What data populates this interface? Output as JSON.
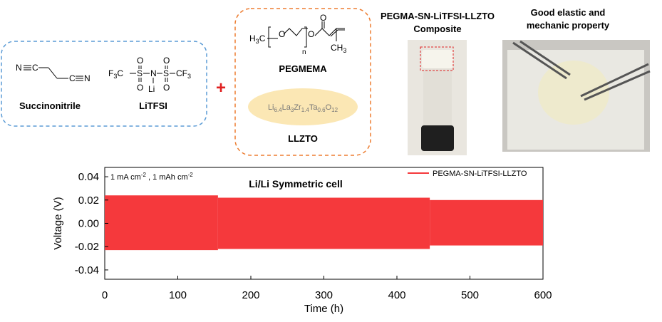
{
  "diagram": {
    "succinonitrile": {
      "atoms": [
        "N",
        "C",
        "C",
        "N"
      ],
      "label": "Succinonitrile"
    },
    "litfsi": {
      "left": [
        "F",
        "3",
        "C"
      ],
      "s": "S",
      "n": "N",
      "right": [
        "CF",
        "3"
      ],
      "o": "O",
      "li": "Li",
      "label": "LiTFSI"
    },
    "plus": "+",
    "pegmema": {
      "h3c": [
        "H",
        "3",
        "C"
      ],
      "o": "O",
      "n": "n",
      "ch3": [
        "CH",
        "3"
      ],
      "label": "PEGMEMA"
    },
    "llzto": {
      "formula": [
        "Li",
        "6.4",
        "La",
        "3",
        "Zr",
        "1.4",
        "Ta",
        "0.6",
        "O",
        "12"
      ],
      "label": "LLZTO"
    },
    "composite_title": [
      "PEGMA-SN-LiTFSI-LLZTO",
      "Composite"
    ],
    "property_title": [
      "Good elastic and",
      "mechanic property"
    ]
  },
  "chart_data": {
    "type": "band",
    "xlabel": "Time (h)",
    "ylabel": "Voltage (V)",
    "condition": [
      "1 mA cm",
      "-2",
      " , 1 mAh cm",
      "-2"
    ],
    "annotation": "Li/Li Symmetric cell",
    "bins": [
      0,
      155,
      445,
      600
    ],
    "series": [
      {
        "name": "PEGMA-SN-LiTFSI-LLZTO",
        "color": "#f5393c",
        "upper": [
          0.024,
          0.022,
          0.02
        ],
        "lower": [
          -0.023,
          -0.022,
          -0.019
        ]
      }
    ],
    "xlim": [
      0,
      600
    ],
    "xticks": [
      0,
      100,
      200,
      300,
      400,
      500,
      600
    ],
    "ylim": [
      -0.048,
      0.048
    ],
    "yticks": [
      -0.04,
      -0.02,
      {
        "value": 0,
        "label": "0.00"
      },
      0.02,
      0.04
    ],
    "legend": "upper right"
  }
}
